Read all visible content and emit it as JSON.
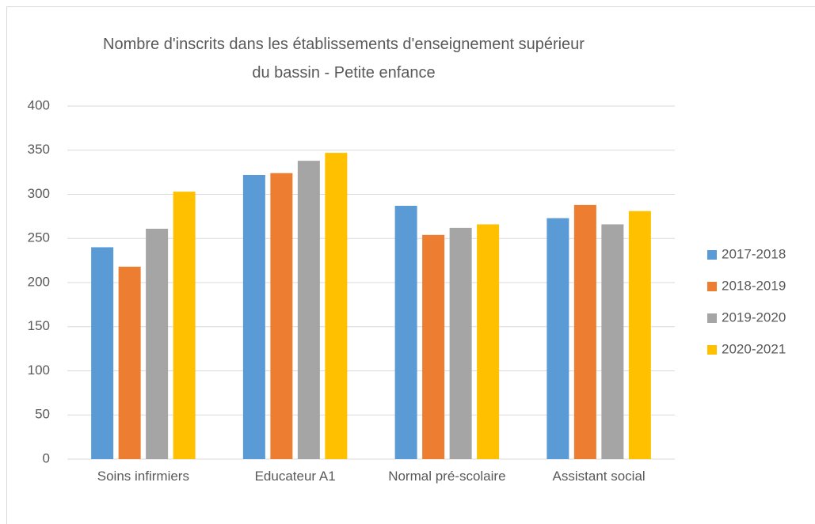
{
  "chart_data": {
    "type": "bar",
    "title": "Nombre d'inscrits dans les établissements d'enseignement supérieur du bassin - Petite enfance",
    "categories": [
      "Soins infirmiers",
      "Educateur A1",
      "Normal pré-scolaire",
      "Assistant social"
    ],
    "series": [
      {
        "name": "2017-2018",
        "color": "#5b9bd5",
        "values": [
          240,
          322,
          287,
          273
        ]
      },
      {
        "name": "2018-2019",
        "color": "#ed7d31",
        "values": [
          218,
          324,
          254,
          288
        ]
      },
      {
        "name": "2019-2020",
        "color": "#a5a5a5",
        "values": [
          261,
          338,
          262,
          266
        ]
      },
      {
        "name": "2020-2021",
        "color": "#ffc000",
        "values": [
          303,
          347,
          266,
          281
        ]
      }
    ],
    "ylim": [
      0,
      400
    ],
    "yticks": [
      0,
      50,
      100,
      150,
      200,
      250,
      300,
      350,
      400
    ],
    "grid": true,
    "legend": "right"
  }
}
